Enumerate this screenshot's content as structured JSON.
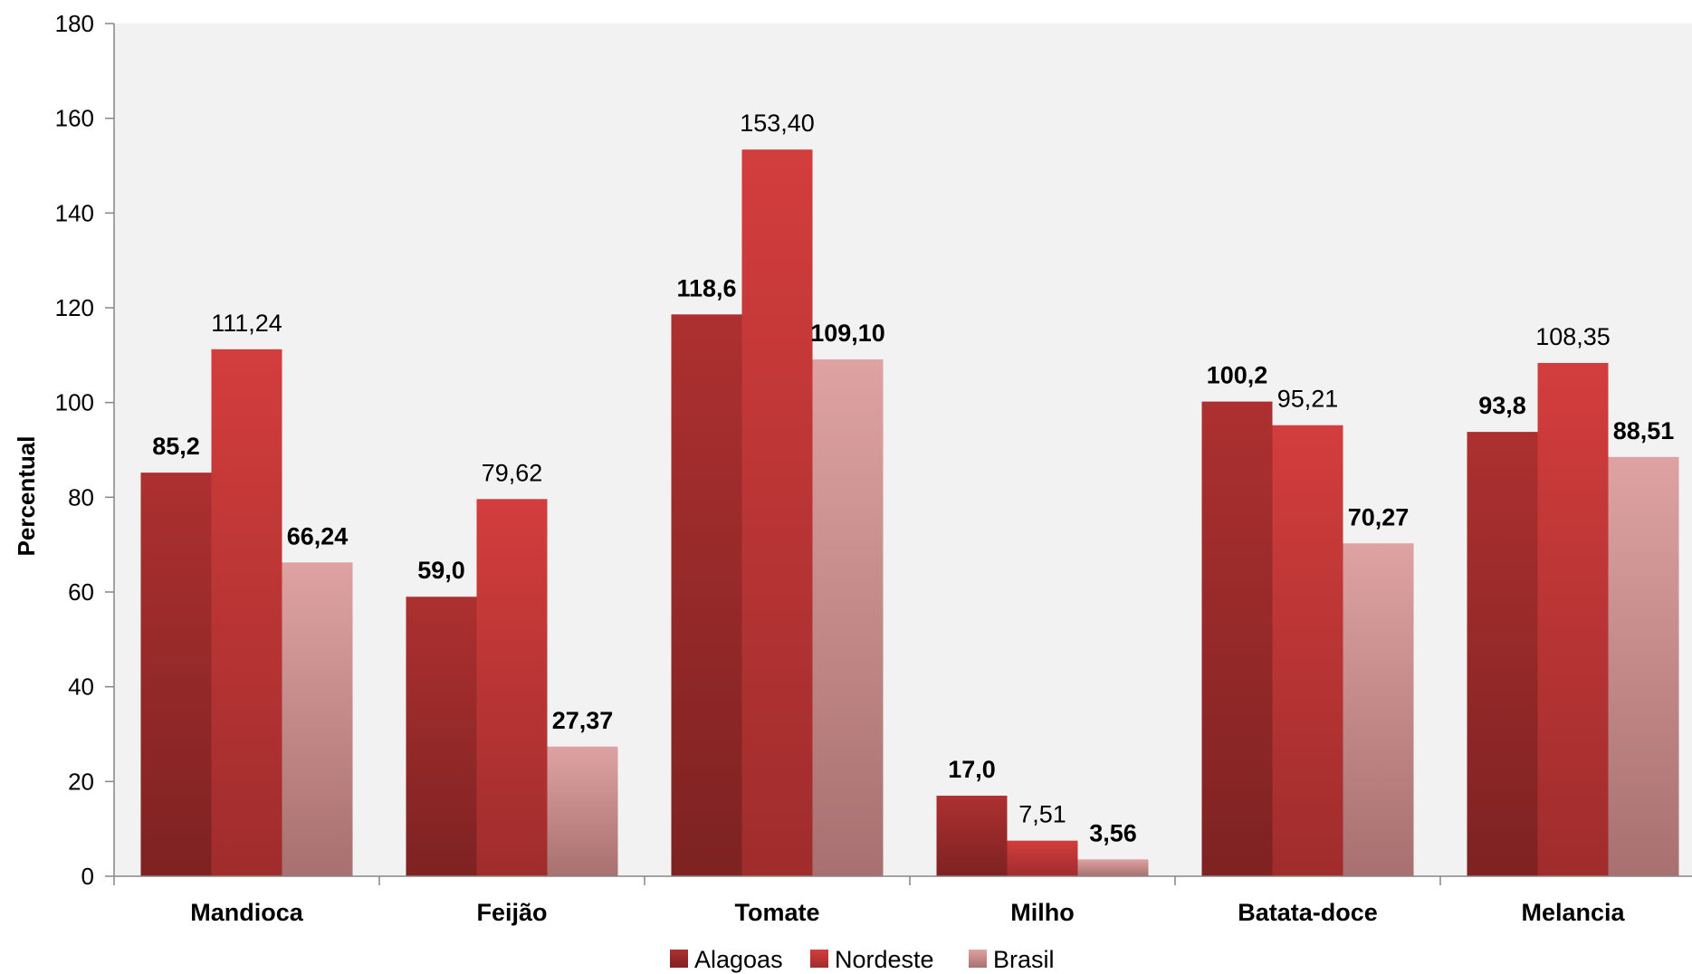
{
  "chart_data": {
    "type": "bar",
    "ylabel": "Percentual",
    "ylim": [
      0,
      180
    ],
    "ytick_step": 20,
    "grid": false,
    "legend_position": "bottom",
    "categories": [
      "Mandioca",
      "Feijão",
      "Tomate",
      "Milho",
      "Batata-doce",
      "Melancia"
    ],
    "series": [
      {
        "name": "Alagoas",
        "color": "#a52a2a",
        "values": [
          85.2,
          59.0,
          118.6,
          17.0,
          100.2,
          93.8
        ],
        "labels": [
          "85,2",
          "59,0",
          "118,6",
          "17,0",
          "100,2",
          "93,8"
        ],
        "labels_bold": [
          true,
          true,
          true,
          true,
          true,
          true
        ]
      },
      {
        "name": "Nordeste",
        "color": "#d03b3b",
        "values": [
          111.24,
          79.62,
          153.4,
          7.51,
          95.21,
          108.35
        ],
        "labels": [
          "111,24",
          "79,62",
          "153,40",
          "7,51",
          "95,21",
          "108,35"
        ],
        "labels_bold": [
          false,
          false,
          false,
          false,
          false,
          false
        ]
      },
      {
        "name": "Brasil",
        "color": "#dc9c9c",
        "values": [
          66.24,
          27.37,
          109.1,
          3.56,
          70.27,
          88.51
        ],
        "labels": [
          "66,24",
          "27,37",
          "109,10",
          "3,56",
          "70,27",
          "88,51"
        ],
        "labels_bold": [
          true,
          true,
          true,
          true,
          true,
          true
        ]
      }
    ]
  }
}
